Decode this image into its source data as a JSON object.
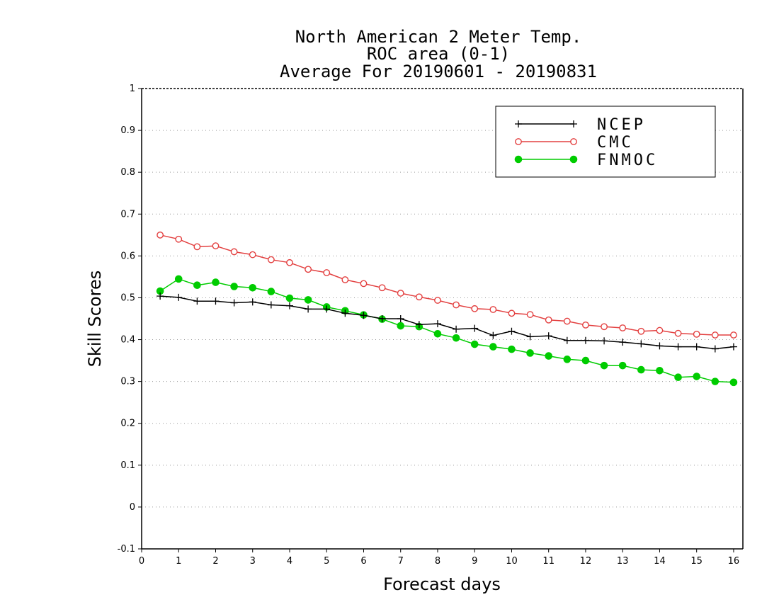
{
  "chart_data": {
    "type": "line",
    "title": "North American 2 Meter Temp.",
    "subtitle": "ROC area (0-1)",
    "subtitle2": "Average For 20190601 - 20190831",
    "xlabel": "Forecast days",
    "ylabel": "Skill Scores",
    "xlim": [
      0,
      16.25
    ],
    "ylim": [
      -0.1,
      1
    ],
    "xticks": [
      0,
      1,
      2,
      3,
      4,
      5,
      6,
      7,
      8,
      9,
      10,
      11,
      12,
      13,
      14,
      15,
      16
    ],
    "yticks": [
      -0.1,
      0,
      0.1,
      0.2,
      0.3,
      0.4,
      0.5,
      0.6,
      0.7,
      0.8,
      0.9,
      1
    ],
    "ytick_labels": [
      "-0.1",
      "0",
      "0.1",
      "0.2",
      "0.3",
      "0.4",
      "0.5",
      "0.6",
      "0.7",
      "0.8",
      "0.9",
      "1"
    ],
    "grid": "horizontal dotted",
    "legend_position": "top-right",
    "x": [
      0.5,
      1.0,
      1.5,
      2.0,
      2.5,
      3.0,
      3.5,
      4.0,
      4.5,
      5.0,
      5.5,
      6.0,
      6.5,
      7.0,
      7.5,
      8.0,
      8.5,
      9.0,
      9.5,
      10.0,
      10.5,
      11.0,
      11.5,
      12.0,
      12.5,
      13.0,
      13.5,
      14.0,
      14.5,
      15.0,
      15.5,
      16.0
    ],
    "series": [
      {
        "name": "NCEP",
        "color": "#000000",
        "marker": "plus",
        "values": [
          0.504,
          0.501,
          0.492,
          0.492,
          0.488,
          0.49,
          0.483,
          0.481,
          0.473,
          0.473,
          0.463,
          0.458,
          0.45,
          0.45,
          0.436,
          0.438,
          0.425,
          0.427,
          0.41,
          0.42,
          0.407,
          0.409,
          0.398,
          0.398,
          0.397,
          0.394,
          0.39,
          0.385,
          0.383,
          0.383,
          0.378,
          0.383
        ]
      },
      {
        "name": "CMC",
        "color": "#e34040",
        "marker": "open-circle",
        "values": [
          0.65,
          0.64,
          0.622,
          0.624,
          0.61,
          0.603,
          0.591,
          0.584,
          0.568,
          0.56,
          0.543,
          0.534,
          0.524,
          0.511,
          0.502,
          0.494,
          0.483,
          0.474,
          0.472,
          0.463,
          0.46,
          0.447,
          0.444,
          0.435,
          0.431,
          0.428,
          0.42,
          0.422,
          0.415,
          0.413,
          0.411,
          0.411
        ]
      },
      {
        "name": "FNMOC",
        "color": "#00cc00",
        "marker": "filled-circle",
        "values": [
          0.516,
          0.545,
          0.53,
          0.537,
          0.527,
          0.524,
          0.515,
          0.499,
          0.495,
          0.478,
          0.469,
          0.459,
          0.449,
          0.433,
          0.431,
          0.414,
          0.404,
          0.389,
          0.383,
          0.377,
          0.368,
          0.361,
          0.353,
          0.35,
          0.338,
          0.338,
          0.328,
          0.326,
          0.31,
          0.312,
          0.3,
          0.298
        ]
      }
    ]
  }
}
